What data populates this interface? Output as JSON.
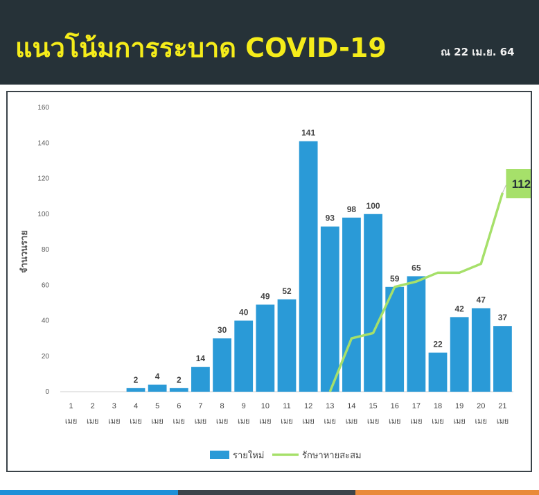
{
  "header": {
    "title": "แนวโน้มการระบาด COVID-19",
    "date": "ณ 22 เม.ย. 64"
  },
  "colors": {
    "header_bg": "#263238",
    "title": "#f5ec1a",
    "bar": "#2a9ad7",
    "line": "#a6e06a",
    "end_label_bg": "#a6e06a",
    "footer": [
      "#1e90d8",
      "#3c444a",
      "#e98a3a"
    ]
  },
  "chart_data": {
    "type": "bar",
    "categories": [
      "1",
      "2",
      "3",
      "4",
      "5",
      "6",
      "7",
      "8",
      "9",
      "10",
      "11",
      "12",
      "13",
      "14",
      "15",
      "16",
      "17",
      "18",
      "19",
      "20",
      "21"
    ],
    "category_sublabel": "เมย",
    "ylabel": "จำนวนราย",
    "ylim": [
      0,
      160
    ],
    "yticks": [
      0,
      20,
      40,
      60,
      80,
      100,
      120,
      140,
      160
    ],
    "legend_position": "bottom",
    "series": [
      {
        "name": "รายใหม่",
        "type": "bar",
        "values": [
          0,
          0,
          0,
          2,
          4,
          2,
          14,
          30,
          40,
          49,
          52,
          141,
          93,
          98,
          100,
          59,
          65,
          22,
          42,
          47,
          37
        ],
        "data_labels": [
          "",
          "",
          "",
          "2",
          "4",
          "2",
          "14",
          "30",
          "40",
          "49",
          "52",
          "141",
          "93",
          "98",
          "100",
          "59",
          "65",
          "22",
          "42",
          "47",
          "37"
        ]
      },
      {
        "name": "รักษาหายสะสม",
        "type": "line",
        "values": [
          null,
          null,
          null,
          null,
          null,
          null,
          null,
          null,
          null,
          null,
          null,
          null,
          0,
          30,
          33,
          59,
          62,
          67,
          67,
          72,
          112
        ],
        "end_label": "112"
      }
    ]
  }
}
